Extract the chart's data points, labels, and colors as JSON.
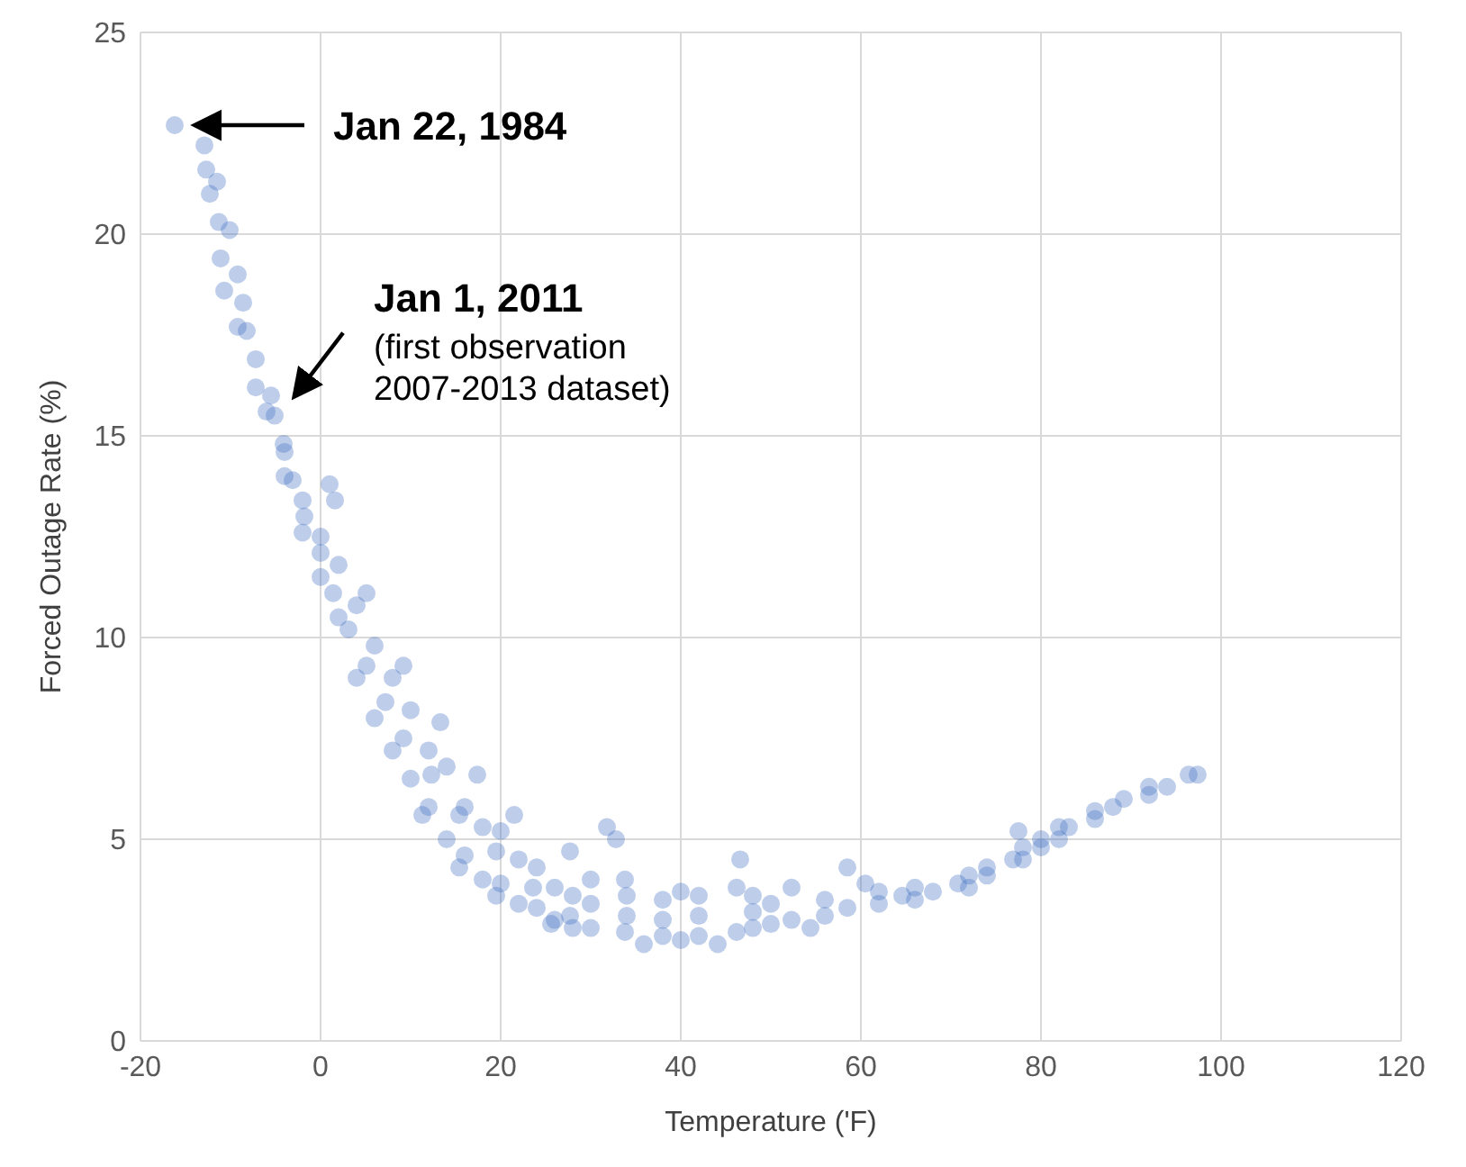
{
  "chart_data": {
    "type": "scatter",
    "xlabel": "Temperature ('F)",
    "ylabel": "Forced Outage Rate (%)",
    "xlim": [
      -20,
      120
    ],
    "xticks": [
      -20,
      0,
      20,
      40,
      60,
      80,
      100,
      120
    ],
    "ylim": [
      0,
      25
    ],
    "yticks": [
      0,
      5,
      10,
      15,
      20,
      25
    ],
    "grid": true,
    "marker": "circle",
    "series": [
      {
        "color": "#4472c4",
        "x": [
          -16.2,
          -12.9,
          -12.7,
          -11.5,
          -12.3,
          -11.3,
          -10.1,
          -11.1,
          -9.2,
          -10.7,
          -8.6,
          -8.2,
          -9.2,
          -7.2,
          -7.2,
          -5.5,
          -5.1,
          -4.1,
          -3.1,
          -1.8,
          0,
          1.4,
          3.1,
          5.1,
          7.2,
          9.2,
          12.3,
          15.4,
          19.5,
          23.6,
          27.7,
          33.8,
          40,
          46.2,
          52.3,
          58.5,
          64.6,
          70.8,
          76.9,
          83.1,
          89.2,
          96.4,
          97.4,
          5.1,
          9.2,
          13.3,
          17.4,
          21.5,
          27.7,
          33.8,
          40,
          46.2,
          52.3,
          60.5,
          11.3,
          15.4,
          19.5,
          25.6,
          35.9,
          44.1,
          54.4,
          31.8,
          32.8,
          46.6,
          58.5,
          77.5,
          1.6,
          1.0,
          2,
          2,
          4,
          4,
          6,
          6,
          8,
          8,
          10,
          10,
          12,
          12,
          14,
          14,
          16,
          16,
          18,
          18,
          20,
          20,
          22,
          22,
          24,
          24,
          26,
          26,
          28,
          28,
          30,
          30,
          30,
          34,
          34,
          38,
          38,
          38,
          42,
          42,
          42,
          48,
          48,
          48,
          50,
          50,
          56,
          56,
          62,
          62,
          66,
          66,
          68,
          72,
          72,
          74,
          74,
          78,
          78,
          80,
          80,
          82,
          82,
          86,
          86,
          88,
          92,
          92,
          94,
          -2,
          -2,
          -4,
          -4,
          -6,
          0,
          0
        ],
        "values": [
          22.7,
          22.2,
          21.6,
          21.3,
          21.0,
          20.3,
          20.1,
          19.4,
          19.0,
          18.6,
          18.3,
          17.6,
          17.7,
          16.9,
          16.2,
          16.0,
          15.5,
          14.8,
          13.9,
          13.0,
          12.1,
          11.1,
          10.2,
          9.3,
          8.4,
          7.5,
          6.6,
          5.6,
          4.7,
          3.8,
          3.1,
          2.7,
          2.5,
          2.7,
          3.0,
          3.3,
          3.6,
          3.9,
          4.5,
          5.3,
          6.0,
          6.6,
          6.6,
          11.1,
          9.3,
          7.9,
          6.6,
          5.6,
          4.7,
          4.0,
          3.7,
          3.8,
          3.8,
          3.9,
          5.6,
          4.3,
          3.6,
          2.9,
          2.4,
          2.4,
          2.8,
          5.3,
          5.0,
          4.5,
          4.3,
          5.2,
          13.4,
          13.8,
          10.5,
          11.8,
          9.0,
          10.8,
          8.0,
          9.8,
          7.2,
          9.0,
          6.5,
          8.2,
          5.8,
          7.2,
          5.0,
          6.8,
          4.6,
          5.8,
          4.0,
          5.3,
          3.9,
          5.2,
          3.4,
          4.5,
          3.3,
          4.3,
          3.0,
          3.8,
          2.8,
          3.6,
          2.8,
          3.4,
          4.0,
          3.1,
          3.6,
          2.6,
          3.0,
          3.5,
          2.6,
          3.1,
          3.6,
          2.8,
          3.2,
          3.6,
          2.9,
          3.4,
          3.1,
          3.5,
          3.4,
          3.7,
          3.5,
          3.8,
          3.7,
          3.8,
          4.1,
          4.1,
          4.3,
          4.5,
          4.8,
          4.8,
          5.0,
          5.0,
          5.3,
          5.5,
          5.7,
          5.8,
          6.1,
          6.3,
          6.3,
          12.6,
          13.4,
          14.0,
          14.6,
          15.6,
          11.5,
          12.5
        ]
      }
    ],
    "annotations": [
      "Jan 22, 1984",
      "Jan 1, 2011",
      "(first observation 2007-2013 dataset)"
    ]
  }
}
